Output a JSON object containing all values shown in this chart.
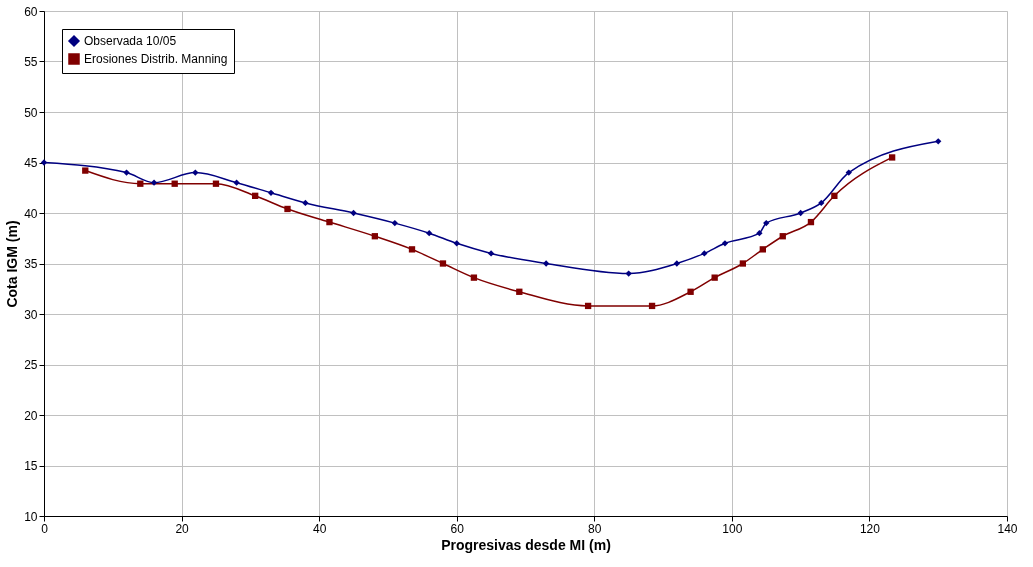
{
  "chart_data": {
    "type": "line",
    "xlabel": "Progresivas desde MI (m)",
    "ylabel": "Cota IGM (m)",
    "xlim": [
      0,
      140
    ],
    "xticks": [
      0,
      20,
      40,
      60,
      80,
      100,
      120,
      140
    ],
    "ylim": [
      10,
      60
    ],
    "yticks": [
      10,
      15,
      20,
      25,
      30,
      35,
      40,
      45,
      50,
      55,
      60
    ],
    "grid": true,
    "legend": "top left",
    "line_style": "solid",
    "series": [
      {
        "name": "Observada 10/05",
        "color": "#000080",
        "marker": "diamond",
        "x": [
          0,
          12,
          16,
          22,
          28,
          33,
          38,
          45,
          51,
          56,
          60,
          65,
          73,
          85,
          92,
          96,
          99,
          104,
          105,
          110,
          113,
          117,
          130
        ],
        "values": [
          45,
          44,
          43,
          44,
          43,
          42,
          41,
          40,
          39,
          38,
          37,
          36,
          35,
          34,
          35,
          36,
          37,
          38,
          39,
          40,
          41,
          44,
          47.1
        ]
      },
      {
        "name": "Erosiones Distrib. Manning",
        "color": "#800000",
        "marker": "square",
        "x": [
          6,
          14,
          19,
          25,
          30.7,
          35.4,
          41.5,
          48.1,
          53.5,
          58,
          62.5,
          69.1,
          79.1,
          88.4,
          94,
          97.5,
          101.6,
          104.5,
          107.4,
          111.5,
          114.9,
          123.3
        ],
        "values": [
          44.2,
          42.9,
          42.9,
          42.9,
          41.7,
          40.4,
          39.1,
          37.7,
          36.4,
          35,
          33.6,
          32.2,
          30.8,
          30.8,
          32.2,
          33.6,
          35,
          36.4,
          37.7,
          39.1,
          41.7,
          45.5
        ]
      }
    ]
  }
}
